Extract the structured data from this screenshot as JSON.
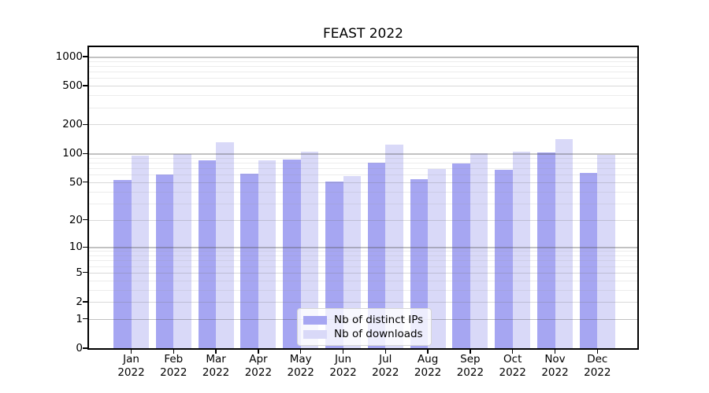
{
  "chart_data": {
    "type": "bar",
    "title": "FEAST 2022",
    "categories": [
      "Jan",
      "Feb",
      "Mar",
      "Apr",
      "May",
      "Jun",
      "Jul",
      "Aug",
      "Sep",
      "Oct",
      "Nov",
      "Dec"
    ],
    "year": "2022",
    "series": [
      {
        "name": "Nb of distinct IPs",
        "color": "#a6a6f2",
        "values": [
          53,
          60,
          84,
          61,
          87,
          51,
          80,
          54,
          79,
          68,
          102,
          63
        ]
      },
      {
        "name": "Nb of downloads",
        "color": "#d9d9f8",
        "values": [
          95,
          98,
          131,
          84,
          105,
          58,
          123,
          69,
          101,
          104,
          141,
          97
        ]
      }
    ],
    "yaxis": {
      "scale": "symlog",
      "ticks": [
        1000,
        500,
        200,
        100,
        50,
        20,
        10,
        5,
        2,
        1,
        0
      ],
      "max": 1250,
      "major_powers": [
        1,
        10,
        100,
        1000
      ]
    },
    "xlabel": "",
    "ylabel": "",
    "grid": true,
    "legend_position": "lower center"
  }
}
